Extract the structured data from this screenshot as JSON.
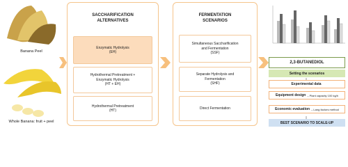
{
  "images": [
    {
      "label": "Banana Peel"
    },
    {
      "label": "Whole Banana: fruit + peel"
    }
  ],
  "columns": [
    {
      "title": "SACCHARIFICATION ALTERNATIVES",
      "items": [
        {
          "name": "Enzymatic Hydrolysis",
          "abbr": "(EH)"
        },
        {
          "name": "Hydrothermal Pretreatment + Enzymatic Hydrolysis",
          "abbr": "(HT + EH)"
        },
        {
          "name": "Hydrothermal Pretreatment",
          "abbr": "(HT)"
        }
      ]
    },
    {
      "title": "FERMENTATION SCENARIOS",
      "items": [
        {
          "name": "Simultaneous Saccharification and Fermentation",
          "abbr": "(SSF)"
        },
        {
          "name": "Separate Hydrolysis and Fermentation",
          "abbr": "(SHF)"
        },
        {
          "name": "Direct Fermentation",
          "abbr": null
        }
      ]
    }
  ],
  "results": {
    "product": "2,3-BUTANEDIOL",
    "setting": "Setting the scenarios",
    "steps": [
      {
        "label": "Experimental data",
        "detail": null
      },
      {
        "label": "Equipment design",
        "detail": "– Plant capacity 100 kg/h"
      },
      {
        "label": "Economic evaluation",
        "detail": "– Lang factors method"
      }
    ],
    "conclusion": "BEST SCENARIO TO SCALE-UP"
  }
}
